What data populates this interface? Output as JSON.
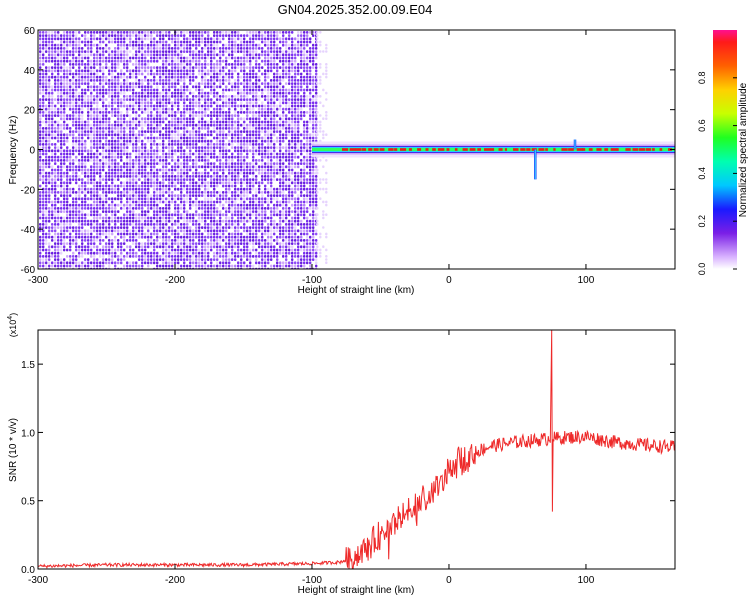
{
  "page": {
    "title": "GN04.2025.352.00.09.E04"
  },
  "colors": {
    "background": "#ffffff",
    "axis": "#000000",
    "snr_line": "#ee2a2a",
    "scatter_dots": "#7a2ff0",
    "ridge_core": "#e51c1c"
  },
  "chart_data": [
    {
      "type": "heatmap",
      "title": "GN04.2025.352.00.09.E04",
      "xlabel": "Height of straight line (km)",
      "ylabel": "Frequency (Hz)",
      "xlim": [
        -300,
        165
      ],
      "ylim": [
        -60,
        60
      ],
      "x_ticks": [
        -300,
        -200,
        -100,
        0,
        100
      ],
      "y_ticks": [
        -60,
        -40,
        -20,
        0,
        20,
        40,
        60
      ],
      "grid": false,
      "regions": [
        {
          "name": "",
          "x_range": [
            -300,
            -100
          ],
          "description_values": {
            "amplitude_range": [
              0.0,
              0.2
            ]
          }
        },
        {
          "name": "",
          "x_range": [
            -100,
            165
          ],
          "center_frequency": 0,
          "peak_amplitude": 1.0
        }
      ],
      "ridge_dips": [
        {
          "x": 63,
          "frequency": -15
        },
        {
          "x": 92,
          "frequency": 5
        }
      ],
      "colorbar": {
        "label": "Normalized spectral amplitude",
        "range": [
          0.0,
          1.0
        ],
        "ticks": [
          "0.0",
          "0.2",
          "0.4",
          "0.6",
          "0.8"
        ],
        "placement": "right"
      }
    },
    {
      "type": "line",
      "xlabel": "Height of straight line (km)",
      "ylabel": "SNR (10 * v/v)",
      "y_multiplier": "(x10",
      "y_multiplier_exp": "4",
      "y_multiplier_close": ")",
      "xlim": [
        -300,
        165
      ],
      "ylim": [
        0.0,
        1.75
      ],
      "x_ticks": [
        -300,
        -200,
        -100,
        0,
        100
      ],
      "y_ticks": [
        "0.0",
        "0.5",
        "1.0",
        "1.5"
      ],
      "grid": false,
      "series": [
        {
          "color": "#ee2a2a",
          "x": [
            -300,
            -250,
            -200,
            -150,
            -100,
            -80,
            -70,
            -60,
            -50,
            -40,
            -30,
            -20,
            -10,
            0,
            10,
            20,
            30,
            50,
            70,
            75,
            80,
            100,
            120,
            140,
            165
          ],
          "y": [
            0.02,
            0.03,
            0.03,
            0.03,
            0.04,
            0.05,
            0.08,
            0.15,
            0.25,
            0.33,
            0.42,
            0.5,
            0.58,
            0.72,
            0.8,
            0.86,
            0.9,
            0.93,
            0.95,
            1.7,
            0.96,
            0.97,
            0.93,
            0.91,
            0.89
          ]
        }
      ],
      "annotations": [
        {
          "type": "spike",
          "x": 75,
          "y": 1.75
        },
        {
          "type": "dip",
          "x": 75,
          "y": 0.42
        }
      ]
    }
  ]
}
